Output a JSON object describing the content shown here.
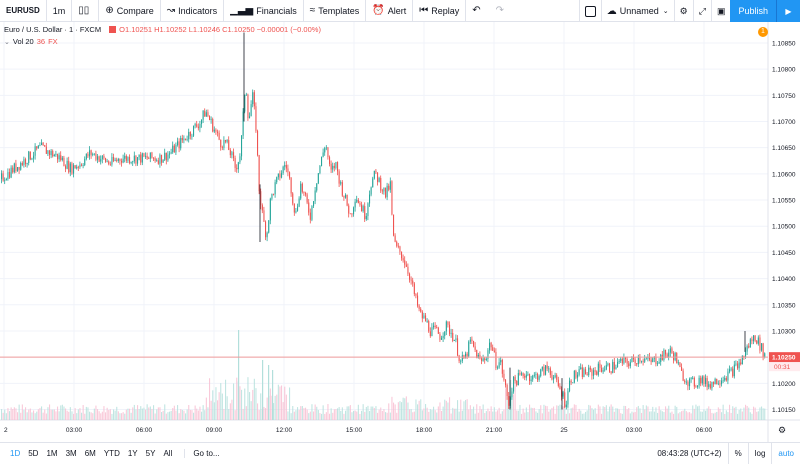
{
  "toolbar": {
    "symbol": "EURUSD",
    "interval": "1m",
    "candle_icon": "candlestick-icon",
    "compare": "Compare",
    "indicators": "Indicators",
    "financials": "Financials",
    "templates": "Templates",
    "alert": "Alert",
    "replay": "Replay",
    "layout_name": "Unnamed",
    "publish": "Publish"
  },
  "legend": {
    "title": "Euro / U.S. Dollar · 1 · FXCM",
    "ohlc": "O1.10251  H1.10252  L1.10246  C1.10250  −0.00001 (−0.00%)"
  },
  "volume_legend": {
    "name": "Vol 20",
    "value": "36",
    "source": "FX"
  },
  "alert_badge": "1",
  "bottom": {
    "ranges": [
      "1D",
      "5D",
      "1M",
      "3M",
      "6M",
      "YTD",
      "1Y",
      "5Y",
      "All"
    ],
    "active_range": "1D",
    "goto": "Go to...",
    "clock": "08:43:28 (UTC+2)",
    "percent": "%",
    "log": "log",
    "auto": "auto"
  },
  "colors": {
    "up": "#26a69a",
    "down": "#ef5350",
    "accent": "#2196f3",
    "grid": "#f0f3fa"
  },
  "chart_data": {
    "type": "candlestick",
    "symbol": "EURUSD",
    "ylim": [
      1.1013,
      1.1089
    ],
    "y_ticks": [
      1.1085,
      1.108,
      1.1075,
      1.107,
      1.1065,
      1.106,
      1.1055,
      1.105,
      1.1045,
      1.104,
      1.1035,
      1.103,
      1.1025,
      1.102,
      1.1015
    ],
    "x_ticks": [
      "2",
      "03:00",
      "06:00",
      "09:00",
      "12:00",
      "15:00",
      "18:00",
      "21:00",
      "25",
      "03:00",
      "06:00"
    ],
    "last_price": "1.10250",
    "countdown": "00:31",
    "price_path_x": [
      0,
      20,
      40,
      60,
      70,
      80,
      90,
      100,
      110,
      120,
      130,
      140,
      150,
      160,
      170,
      180,
      190,
      200,
      205,
      210,
      215,
      220,
      225,
      230,
      235,
      240,
      243,
      245,
      248,
      252,
      256,
      258,
      262,
      266,
      270,
      275,
      280,
      285,
      290,
      295,
      300,
      305,
      310,
      315,
      320,
      325,
      330,
      335,
      340,
      345,
      350,
      355,
      360,
      365,
      370,
      375,
      380,
      385,
      390,
      392,
      395,
      400,
      405,
      410,
      415,
      420,
      425,
      430,
      435,
      440,
      445,
      450,
      455,
      460,
      465,
      470,
      475,
      480,
      485,
      490,
      495,
      500,
      505,
      508,
      512,
      518,
      525,
      532,
      540,
      548,
      556,
      562,
      565,
      570,
      580,
      590,
      600,
      610,
      620,
      630,
      640,
      650,
      660,
      670,
      675,
      680,
      685,
      690,
      695,
      700,
      705,
      710,
      720,
      730,
      740,
      745,
      750,
      755,
      760,
      765
    ],
    "price_path_y": [
      1.1059,
      1.1062,
      1.1065,
      1.1063,
      1.1061,
      1.1062,
      1.1064,
      1.1063,
      1.1062,
      1.1063,
      1.1063,
      1.1063,
      1.1063,
      1.1063,
      1.1064,
      1.1066,
      1.1068,
      1.107,
      1.1072,
      1.107,
      1.1068,
      1.1066,
      1.1066,
      1.1064,
      1.1061,
      1.1064,
      1.1072,
      1.1078,
      1.107,
      1.1075,
      1.1068,
      1.1058,
      1.1052,
      1.1048,
      1.1055,
      1.1058,
      1.106,
      1.1062,
      1.1058,
      1.1052,
      1.1058,
      1.1055,
      1.1052,
      1.1058,
      1.1062,
      1.1066,
      1.106,
      1.1062,
      1.1058,
      1.1055,
      1.1052,
      1.1056,
      1.1054,
      1.1052,
      1.1058,
      1.106,
      1.1058,
      1.1056,
      1.1058,
      1.1049,
      1.1046,
      1.1045,
      1.1043,
      1.104,
      1.1036,
      1.1033,
      1.1032,
      1.103,
      1.103,
      1.1029,
      1.1031,
      1.103,
      1.1028,
      1.1024,
      1.1025,
      1.1028,
      1.1026,
      1.1024,
      1.1025,
      1.1028,
      1.1024,
      1.1024,
      1.1019,
      1.1016,
      1.102,
      1.1021,
      1.1022,
      1.1021,
      1.1022,
      1.1023,
      1.102,
      1.1018,
      1.1016,
      1.1021,
      1.1022,
      1.1022,
      1.1023,
      1.1023,
      1.1024,
      1.1024,
      1.1025,
      1.1024,
      1.1025,
      1.1026,
      1.1025,
      1.1022,
      1.1021,
      1.102,
      1.102,
      1.1021,
      1.102,
      1.102,
      1.1021,
      1.1022,
      1.1024,
      1.1026,
      1.1028,
      1.1029,
      1.1027,
      1.1025
    ]
  }
}
